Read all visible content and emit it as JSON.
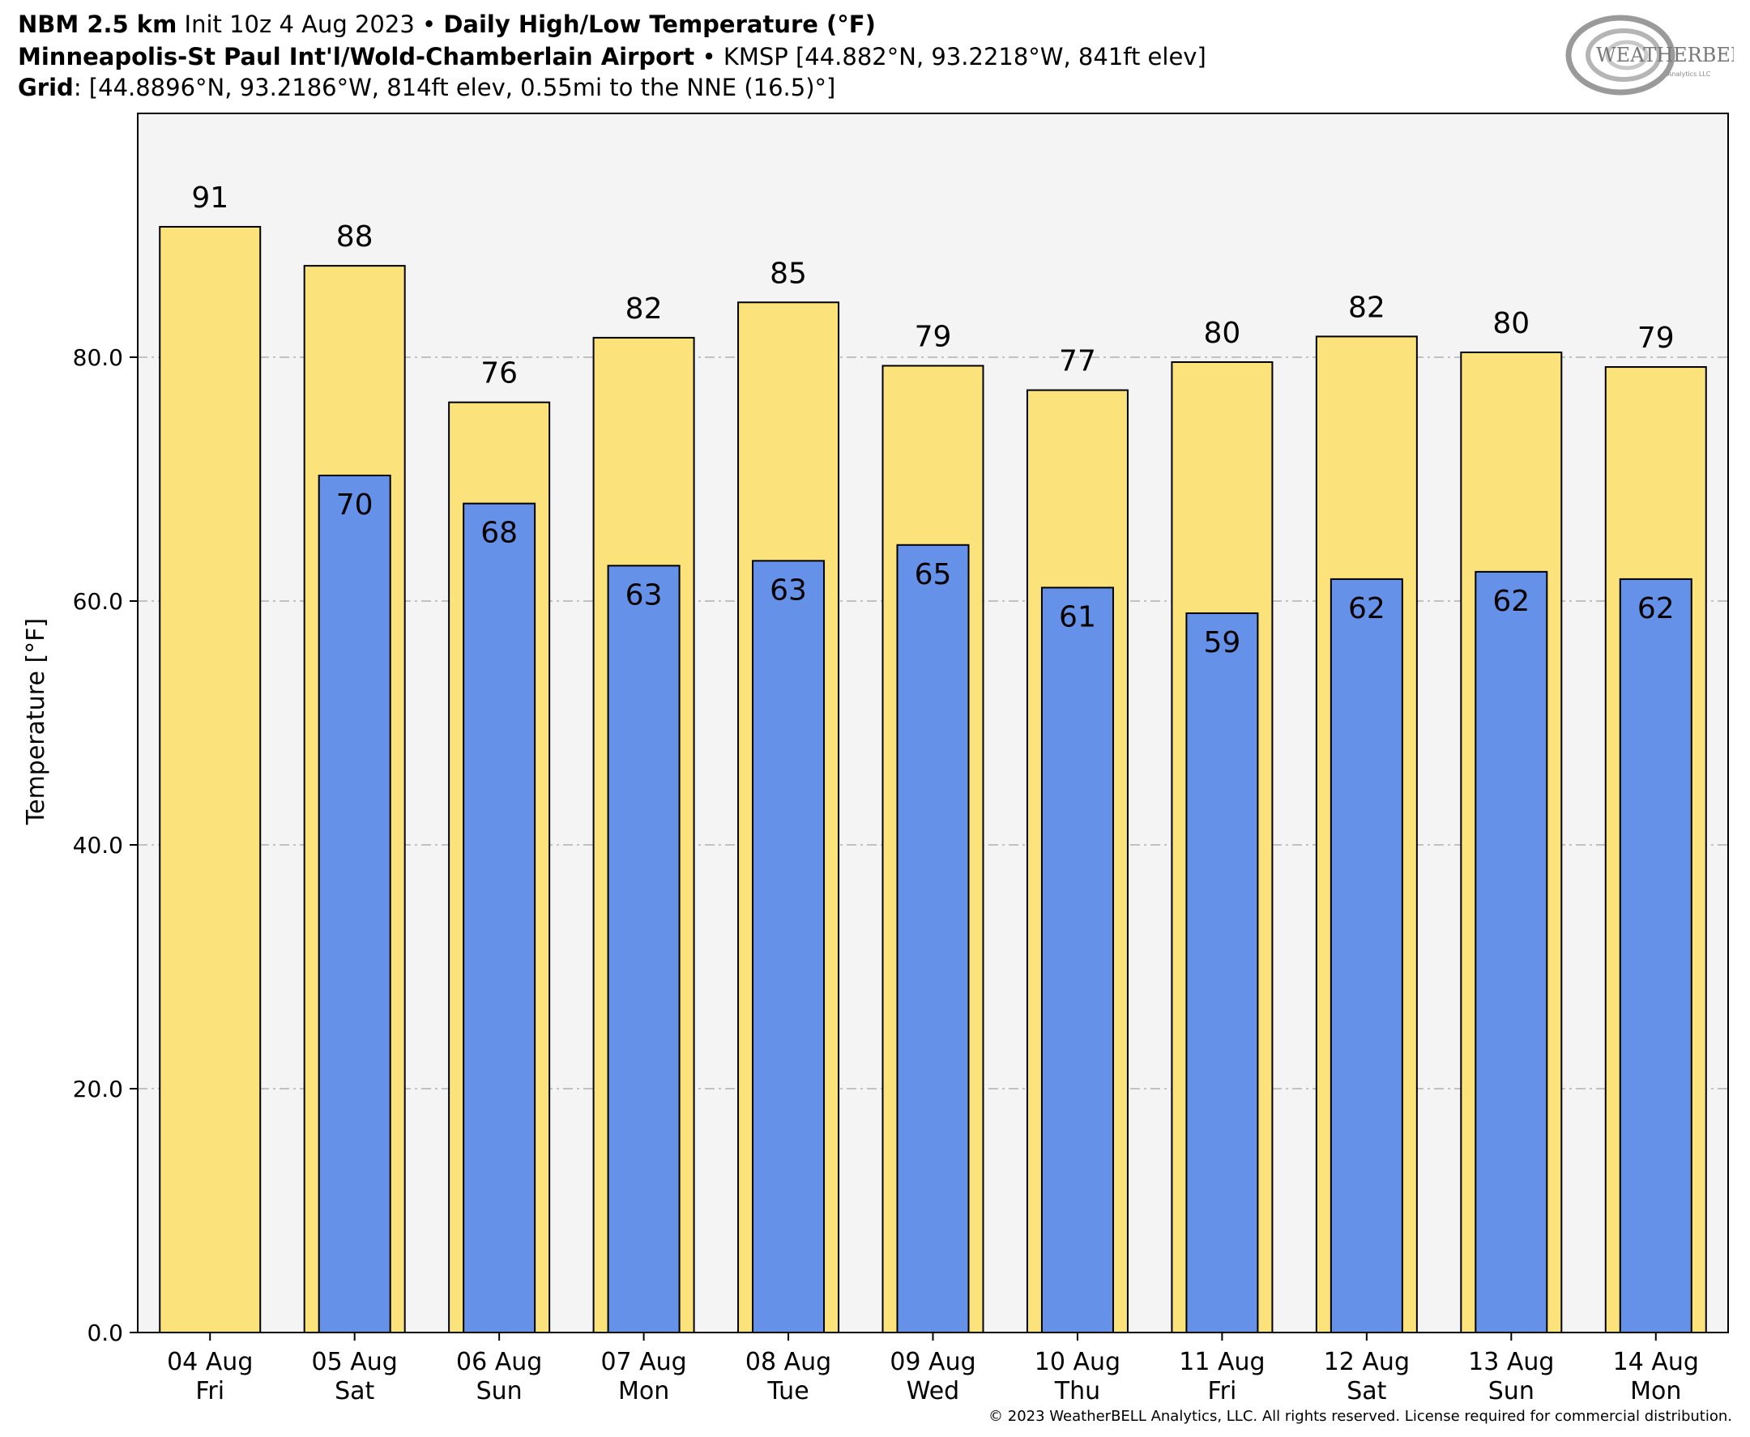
{
  "header": {
    "line1": {
      "model": "NBM 2.5 km",
      "init": "Init 10z 4 Aug 2023",
      "sep": "•",
      "product": "Daily High/Low Temperature (°F)"
    },
    "line2": {
      "station": "Minneapolis-St Paul Int'l/Wold-Chamberlain Airport",
      "sep": "•",
      "details": "KMSP [44.882°N, 93.2218°W, 841ft elev]"
    },
    "line3": {
      "label": "Grid",
      "details": ": [44.8896°N, 93.2186°W, 814ft elev, 0.55mi to the NNE (16.5)°]"
    }
  },
  "logo": {
    "text": "WEATHERBELL",
    "subtext": "Analytics LLC"
  },
  "copyright": "© 2023 WeatherBELL Analytics, LLC. All rights reserved. License required for commercial distribution.",
  "colors": {
    "high_bar": "#fbe27b",
    "low_bar": "#6592e8",
    "plot_bg": "#f4f4f5",
    "grid": "#b0b0b0"
  },
  "chart_data": {
    "type": "bar",
    "ylabel": "Temperature [°F]",
    "ylim": [
      0,
      100
    ],
    "yticks": [
      0,
      20,
      40,
      60,
      80
    ],
    "ytick_labels": [
      "0.0",
      "20.0",
      "40.0",
      "60.0",
      "80.0"
    ],
    "grid": "horizontal dashed",
    "categories": [
      [
        "04 Aug",
        "Fri"
      ],
      [
        "05 Aug",
        "Sat"
      ],
      [
        "06 Aug",
        "Sun"
      ],
      [
        "07 Aug",
        "Mon"
      ],
      [
        "08 Aug",
        "Tue"
      ],
      [
        "09 Aug",
        "Wed"
      ],
      [
        "10 Aug",
        "Thu"
      ],
      [
        "11 Aug",
        "Fri"
      ],
      [
        "12 Aug",
        "Sat"
      ],
      [
        "13 Aug",
        "Sun"
      ],
      [
        "14 Aug",
        "Mon"
      ]
    ],
    "series": [
      {
        "values": [
          90.7,
          87.5,
          76.3,
          81.6,
          84.5,
          79.3,
          77.3,
          79.6,
          81.7,
          80.4,
          79.2
        ],
        "labels": [
          "91",
          "88",
          "76",
          "82",
          "85",
          "79",
          "77",
          "80",
          "82",
          "80",
          "79"
        ]
      },
      {
        "values": [
          null,
          70.3,
          68.0,
          62.9,
          63.3,
          64.6,
          61.1,
          59.0,
          61.8,
          62.4,
          61.8
        ],
        "labels": [
          null,
          "70",
          "68",
          "63",
          "63",
          "65",
          "61",
          "59",
          "62",
          "62",
          "62"
        ]
      }
    ]
  }
}
